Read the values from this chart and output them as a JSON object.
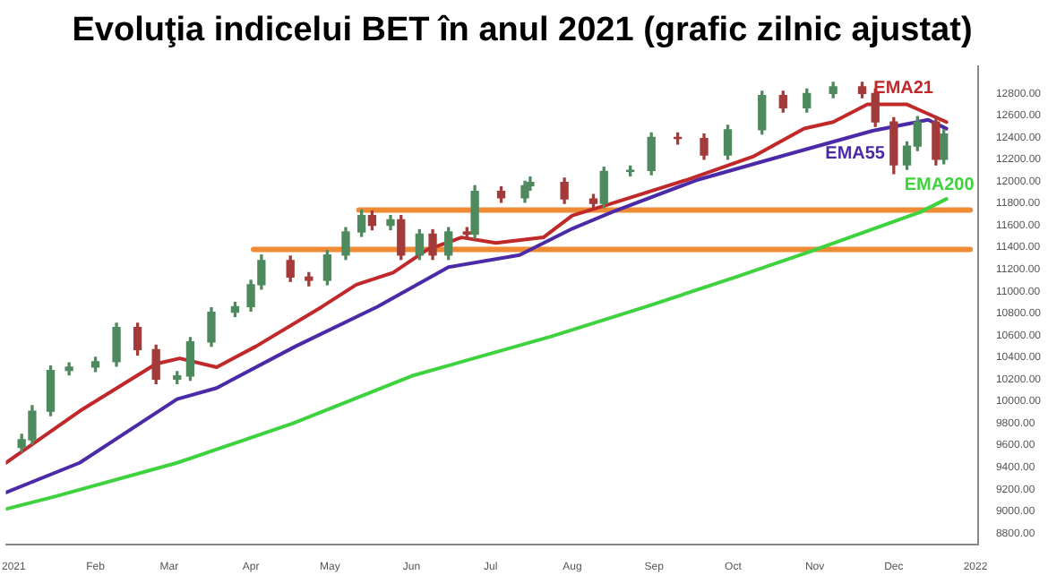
{
  "chart_data": {
    "type": "candlestick",
    "title": "Evoluţia indicelui BET în anul 2021 (grafic zilnic ajustat)",
    "x": [
      "2021-01-04",
      "2021-01-08",
      "2021-01-15",
      "2021-01-22",
      "2021-02-01",
      "2021-02-09",
      "2021-02-17",
      "2021-02-24",
      "2021-03-04",
      "2021-03-09",
      "2021-03-17",
      "2021-03-26",
      "2021-04-01",
      "2021-04-05",
      "2021-04-16",
      "2021-04-23",
      "2021-04-30",
      "2021-05-07",
      "2021-05-13",
      "2021-05-17",
      "2021-05-24",
      "2021-05-28",
      "2021-06-04",
      "2021-06-09",
      "2021-06-15",
      "2021-06-22",
      "2021-06-25",
      "2021-07-05",
      "2021-07-14",
      "2021-07-16",
      "2021-07-29",
      "2021-08-09",
      "2021-08-13",
      "2021-08-23",
      "2021-08-31",
      "2021-09-10",
      "2021-09-20",
      "2021-09-29",
      "2021-10-12",
      "2021-10-20",
      "2021-10-29",
      "2021-11-08",
      "2021-11-19",
      "2021-11-24",
      "2021-12-01",
      "2021-12-06",
      "2021-12-10",
      "2021-12-17",
      "2021-12-20"
    ],
    "ohlc": [
      [
        9580,
        9700,
        9540,
        9650
      ],
      [
        9650,
        9960,
        9610,
        9910
      ],
      [
        9910,
        10320,
        9870,
        10280
      ],
      [
        10280,
        10350,
        10240,
        10310
      ],
      [
        10310,
        10400,
        10270,
        10360
      ],
      [
        10360,
        10710,
        10320,
        10670
      ],
      [
        10670,
        10710,
        10420,
        10470
      ],
      [
        10470,
        10510,
        10160,
        10200
      ],
      [
        10200,
        10270,
        10160,
        10230
      ],
      [
        10230,
        10580,
        10190,
        10540
      ],
      [
        10540,
        10850,
        10500,
        10810
      ],
      [
        10810,
        10900,
        10770,
        10860
      ],
      [
        10860,
        11100,
        10820,
        11060
      ],
      [
        11060,
        11330,
        11020,
        11280
      ],
      [
        11280,
        11320,
        11090,
        11130
      ],
      [
        11130,
        11170,
        11050,
        11100
      ],
      [
        11100,
        11370,
        11060,
        11330
      ],
      [
        11330,
        11580,
        11290,
        11540
      ],
      [
        11540,
        11740,
        11500,
        11690
      ],
      [
        11690,
        11730,
        11560,
        11600
      ],
      [
        11600,
        11690,
        11560,
        11650
      ],
      [
        11650,
        11690,
        11290,
        11330
      ],
      [
        11330,
        11560,
        11290,
        11520
      ],
      [
        11520,
        11560,
        11290,
        11330
      ],
      [
        11330,
        11580,
        11290,
        11540
      ],
      [
        11540,
        11580,
        11480,
        11520
      ],
      [
        11520,
        11960,
        11480,
        11910
      ],
      [
        11910,
        11950,
        11810,
        11850
      ],
      [
        11850,
        12000,
        11810,
        11960
      ],
      [
        11960,
        12040,
        11920,
        11990
      ],
      [
        11990,
        12030,
        11800,
        11840
      ],
      [
        11840,
        11880,
        11760,
        11800
      ],
      [
        11800,
        12130,
        11760,
        12090
      ],
      [
        12090,
        12140,
        12050,
        12100
      ],
      [
        12100,
        12440,
        12060,
        12400
      ],
      [
        12400,
        12440,
        12340,
        12390
      ],
      [
        12390,
        12430,
        12200,
        12240
      ],
      [
        12240,
        12510,
        12200,
        12470
      ],
      [
        12470,
        12820,
        12430,
        12780
      ],
      [
        12780,
        12820,
        12630,
        12670
      ],
      [
        12670,
        12840,
        12630,
        12800
      ],
      [
        12800,
        12900,
        12760,
        12860
      ],
      [
        12860,
        12900,
        12760,
        12800
      ],
      [
        12800,
        12840,
        12500,
        12540
      ],
      [
        12540,
        12580,
        12070,
        12150
      ],
      [
        12150,
        12360,
        12110,
        12320
      ],
      [
        12320,
        12590,
        12280,
        12540
      ],
      [
        12540,
        12580,
        12150,
        12200
      ],
      [
        12200,
        12470,
        12160,
        12430
      ]
    ],
    "colors": [
      "#4f8a5f",
      "#4f8a5f",
      "#4f8a5f",
      "#4f8a5f",
      "#4f8a5f",
      "#4f8a5f",
      "#a33b3b",
      "#a33b3b",
      "#4f8a5f",
      "#4f8a5f",
      "#4f8a5f",
      "#4f8a5f",
      "#4f8a5f",
      "#4f8a5f",
      "#a33b3b",
      "#a33b3b",
      "#4f8a5f",
      "#4f8a5f",
      "#4f8a5f",
      "#a33b3b",
      "#4f8a5f",
      "#a33b3b",
      "#4f8a5f",
      "#a33b3b",
      "#4f8a5f",
      "#a33b3b",
      "#4f8a5f",
      "#a33b3b",
      "#4f8a5f",
      "#4f8a5f",
      "#a33b3b",
      "#a33b3b",
      "#4f8a5f",
      "#4f8a5f",
      "#4f8a5f",
      "#a33b3b",
      "#a33b3b",
      "#4f8a5f",
      "#4f8a5f",
      "#a33b3b",
      "#4f8a5f",
      "#4f8a5f",
      "#a33b3b",
      "#a33b3b",
      "#a33b3b",
      "#4f8a5f",
      "#4f8a5f",
      "#a33b3b",
      "#4f8a5f"
    ],
    "series": [
      {
        "type": "line",
        "name": "EMA21",
        "color": "#c0282a",
        "x": [
          "2020-12-29",
          "2021-01-26",
          "2021-02-24",
          "2021-03-05",
          "2021-03-19",
          "2021-04-03",
          "2021-04-28",
          "2021-05-11",
          "2021-05-25",
          "2021-06-07",
          "2021-06-20",
          "2021-07-03",
          "2021-07-21",
          "2021-08-01",
          "2021-08-16",
          "2021-09-13",
          "2021-10-09",
          "2021-10-28",
          "2021-11-08",
          "2021-11-21",
          "2021-12-06",
          "2021-12-21"
        ],
        "values": [
          9440,
          9910,
          10340,
          10390,
          10310,
          10500,
          10860,
          11060,
          11170,
          11380,
          11490,
          11440,
          11490,
          11690,
          11800,
          12010,
          12230,
          12480,
          12540,
          12700,
          12700,
          12540
        ]
      },
      {
        "type": "line",
        "name": "EMA55",
        "color": "#4b2aa8",
        "x": [
          "2020-12-29",
          "2021-01-26",
          "2021-03-04",
          "2021-03-19",
          "2021-04-18",
          "2021-05-19",
          "2021-06-15",
          "2021-07-12",
          "2021-08-01",
          "2021-08-16",
          "2021-09-17",
          "2021-10-21",
          "2021-11-23",
          "2021-12-14",
          "2021-12-21"
        ],
        "values": [
          9170,
          9440,
          10020,
          10120,
          10500,
          10860,
          11220,
          11330,
          11570,
          11720,
          12010,
          12240,
          12460,
          12560,
          12480
        ]
      },
      {
        "type": "line",
        "name": "EMA200",
        "color": "#3fd23f",
        "x": [
          "2020-12-29",
          "2021-01-16",
          "2021-03-04",
          "2021-04-17",
          "2021-06-01",
          "2021-07-24",
          "2021-08-29",
          "2021-10-02",
          "2021-10-30",
          "2021-12-11",
          "2021-12-21"
        ],
        "values": [
          9020,
          9130,
          9440,
          9800,
          10230,
          10590,
          10860,
          11130,
          11360,
          11720,
          11840
        ]
      },
      {
        "type": "line",
        "color": "#ef8a35",
        "x": [
          "2021-05-12",
          "2021-12-30"
        ],
        "values": [
          11740,
          11740
        ]
      },
      {
        "type": "line",
        "color": "#ef8a35",
        "x": [
          "2021-04-02",
          "2021-12-30"
        ],
        "values": [
          11380,
          11380
        ]
      }
    ],
    "xlim": [
      "2020-12-29",
      "2022-01-02"
    ],
    "xticks": [
      {
        "value": "2021-01-01",
        "label": "2021"
      },
      {
        "value": "2021-02-01",
        "label": "Feb"
      },
      {
        "value": "2021-03-01",
        "label": "Mar"
      },
      {
        "value": "2021-04-01",
        "label": "Apr"
      },
      {
        "value": "2021-05-01",
        "label": "May"
      },
      {
        "value": "2021-06-01",
        "label": "Jun"
      },
      {
        "value": "2021-07-01",
        "label": "Jul"
      },
      {
        "value": "2021-08-01",
        "label": "Aug"
      },
      {
        "value": "2021-09-01",
        "label": "Sep"
      },
      {
        "value": "2021-10-01",
        "label": "Oct"
      },
      {
        "value": "2021-11-01",
        "label": "Nov"
      },
      {
        "value": "2021-12-01",
        "label": "Dec"
      },
      {
        "value": "2022-01-01",
        "label": "2022"
      }
    ],
    "ylim": [
      8700,
      13050
    ],
    "yticks": [
      {
        "value": 8800,
        "label": "8800.00"
      },
      {
        "value": 9000,
        "label": "9000.00"
      },
      {
        "value": 9200,
        "label": "9200.00"
      },
      {
        "value": 9400,
        "label": "9400.00"
      },
      {
        "value": 9600,
        "label": "9600.00"
      },
      {
        "value": 9800,
        "label": "9800.00"
      },
      {
        "value": 10000,
        "label": "10000.00"
      },
      {
        "value": 10200,
        "label": "10200.00"
      },
      {
        "value": 10400,
        "label": "10400.00"
      },
      {
        "value": 10600,
        "label": "10600.00"
      },
      {
        "value": 10800,
        "label": "10800.00"
      },
      {
        "value": 11000,
        "label": "11000.00"
      },
      {
        "value": 11200,
        "label": "11200.00"
      },
      {
        "value": 11400,
        "label": "11400.00"
      },
      {
        "value": 11600,
        "label": "11600.00"
      },
      {
        "value": 11800,
        "label": "11800.00"
      },
      {
        "value": 12000,
        "label": "12000.00"
      },
      {
        "value": 12200,
        "label": "12200.00"
      },
      {
        "value": 12400,
        "label": "12400.00"
      },
      {
        "value": 12600,
        "label": "12600.00"
      },
      {
        "value": 12800,
        "label": "12800.00"
      }
    ]
  }
}
